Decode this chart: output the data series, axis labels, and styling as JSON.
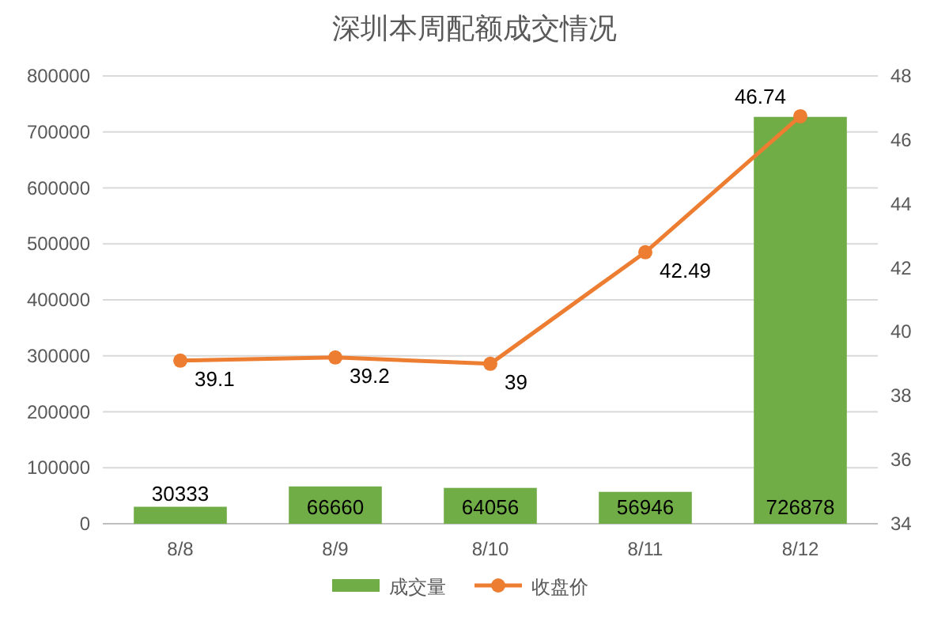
{
  "chart_data": {
    "type": "bar",
    "title": "深圳本周配额成交情况",
    "categories": [
      "8/8",
      "8/9",
      "8/10",
      "8/11",
      "8/12"
    ],
    "series": [
      {
        "name": "成交量",
        "color": "#70ad47",
        "values": [
          30333,
          66660,
          64056,
          56946,
          726878
        ]
      },
      {
        "name": "收盘价",
        "type": "line",
        "axis": "y2",
        "color": "#ed7d31",
        "values": [
          39.1,
          39.2,
          39,
          42.49,
          46.74
        ]
      }
    ],
    "ylim": [
      0,
      800000
    ],
    "yticks": [
      0,
      100000,
      200000,
      300000,
      400000,
      500000,
      600000,
      700000,
      800000
    ],
    "y2lim": [
      34,
      48
    ],
    "y2ticks": [
      34,
      36,
      38,
      40,
      42,
      44,
      46,
      48
    ],
    "grid": "y",
    "legend": "bottom",
    "marker": "circle",
    "data_labels": true
  }
}
